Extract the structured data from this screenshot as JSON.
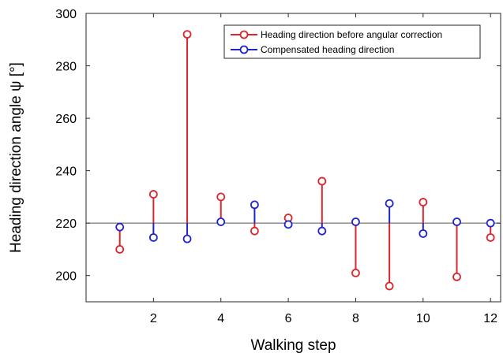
{
  "chart_data": {
    "type": "stem",
    "xlabel": "Walking step",
    "ylabel": "Heading direction angle ψ [°]",
    "xlim": [
      0,
      12.3
    ],
    "ylim": [
      190,
      300
    ],
    "xticks": [
      2,
      4,
      6,
      8,
      10,
      12
    ],
    "yticks": [
      200,
      220,
      240,
      260,
      280,
      300
    ],
    "baseline": 220,
    "grid": false,
    "legend_position": "top-right",
    "series": [
      {
        "name": "Heading direction before angular correction",
        "color": "#d9252b",
        "x": [
          1,
          2,
          3,
          4,
          5,
          6,
          7,
          8,
          9,
          10,
          11,
          12
        ],
        "values": [
          210,
          231,
          292,
          230,
          217,
          222,
          236,
          201,
          196,
          228,
          199.5,
          214.5
        ]
      },
      {
        "name": "Compensated heading direction",
        "color": "#2222cc",
        "x": [
          1,
          2,
          3,
          4,
          5,
          6,
          7,
          8,
          9,
          10,
          11,
          12
        ],
        "values": [
          218.5,
          214.5,
          214,
          220.5,
          227,
          219.5,
          217,
          220.5,
          227.5,
          216,
          220.5,
          220
        ]
      }
    ]
  }
}
